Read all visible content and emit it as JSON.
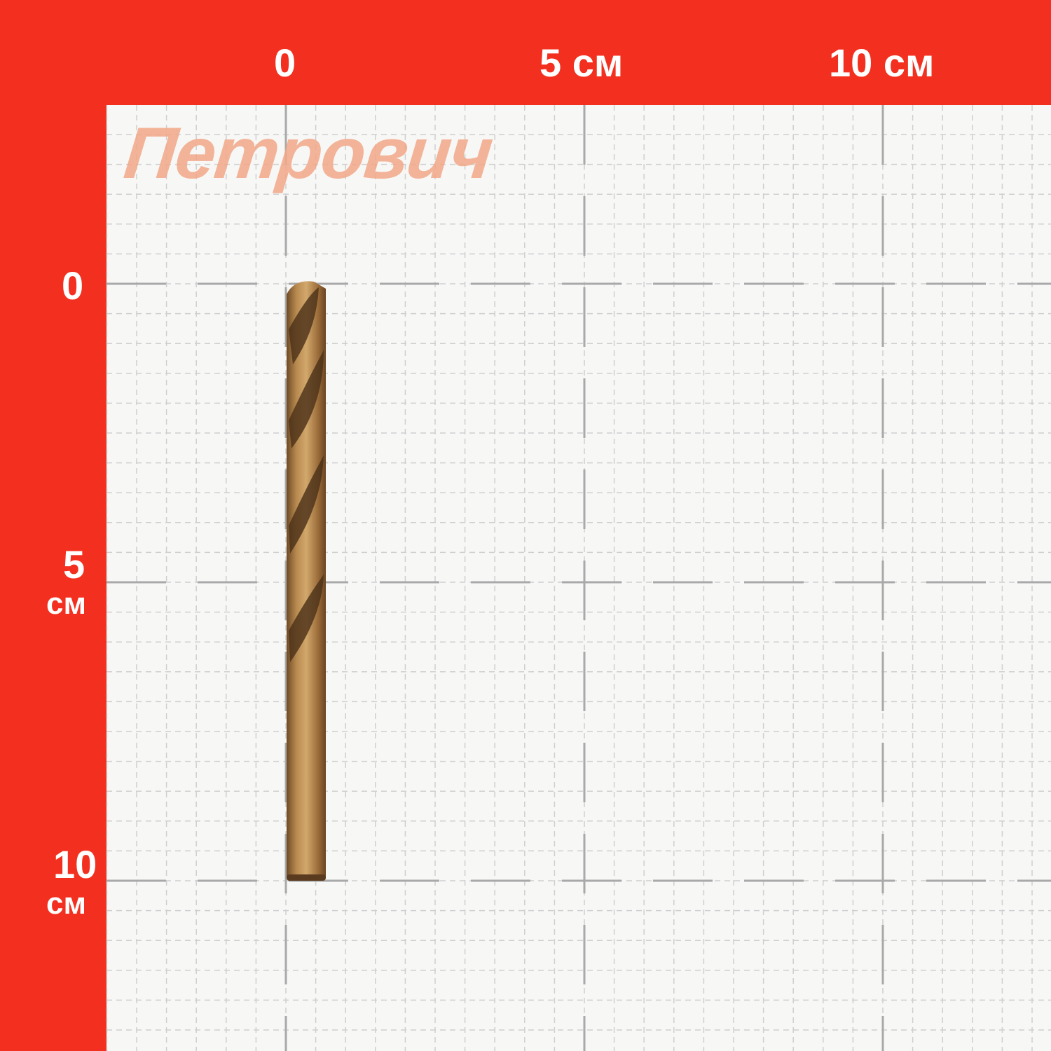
{
  "logo_text": "Петрович",
  "ruler": {
    "top_labels": [
      "0",
      "5 см",
      "10 см"
    ],
    "left_labels": [
      {
        "value": "0",
        "unit": ""
      },
      {
        "value": "5",
        "unit": "см"
      },
      {
        "value": "10",
        "unit": "см"
      }
    ]
  },
  "colors": {
    "frame": "#f3301f",
    "grid_bg": "#f7f7f6",
    "grid_line": "#a9a9a9",
    "drill": "#a87a44"
  },
  "object": {
    "name": "drill-bit",
    "length_cm": 10,
    "material_color": "cobalt bronze"
  }
}
